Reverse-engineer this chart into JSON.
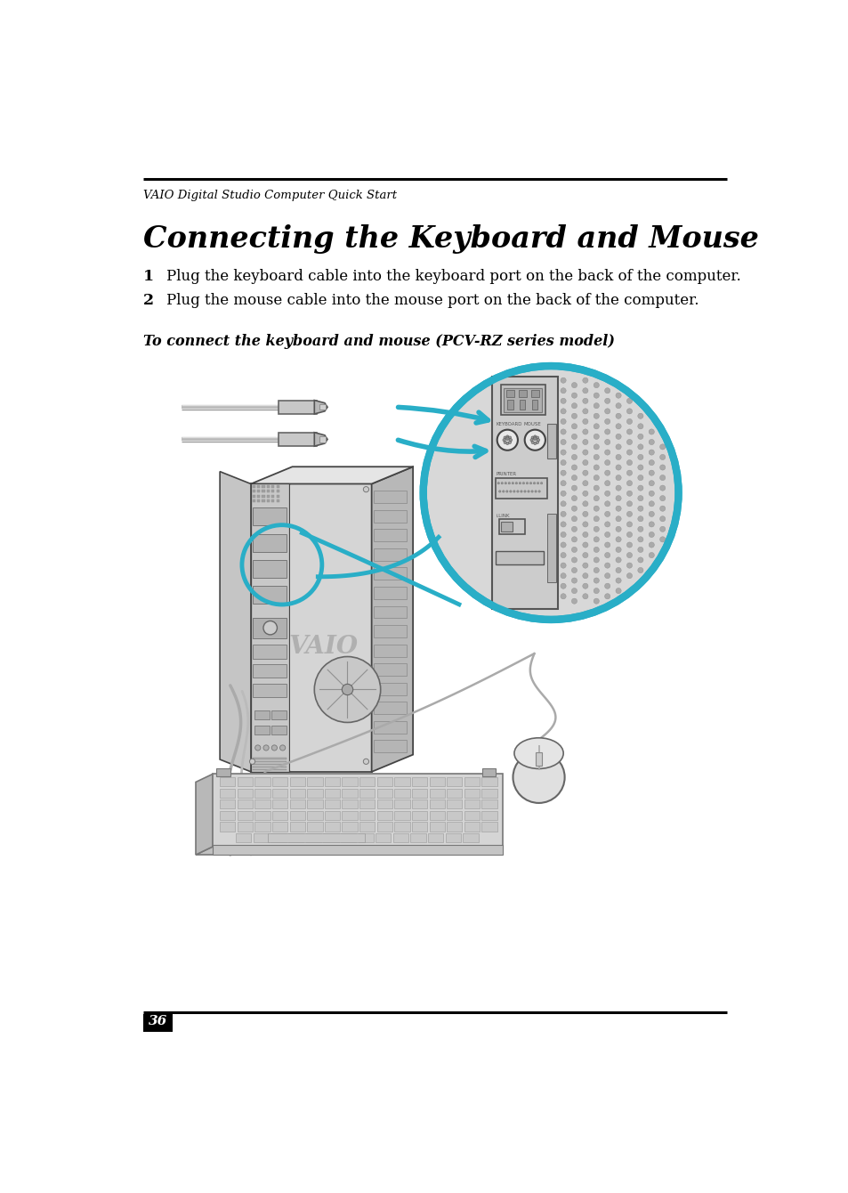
{
  "header_text": "VAIO Digital Studio Computer Quick Start",
  "title": "Connecting the Keyboard and Mouse",
  "step1_num": "1",
  "step1": "Plug the keyboard cable into the keyboard port on the back of the computer.",
  "step2_num": "2",
  "step2": "Plug the mouse cable into the mouse port on the back of the computer.",
  "subtitle": "To connect the keyboard and mouse (PCV-RZ series model)",
  "page_number": "36",
  "bg_color": "#ffffff",
  "text_color": "#000000",
  "accent_color": "#29aec7",
  "line_color": "#000000",
  "gray_light": "#d8d8d8",
  "gray_mid": "#b8b8b8",
  "gray_dark": "#888888",
  "outline_color": "#444444"
}
